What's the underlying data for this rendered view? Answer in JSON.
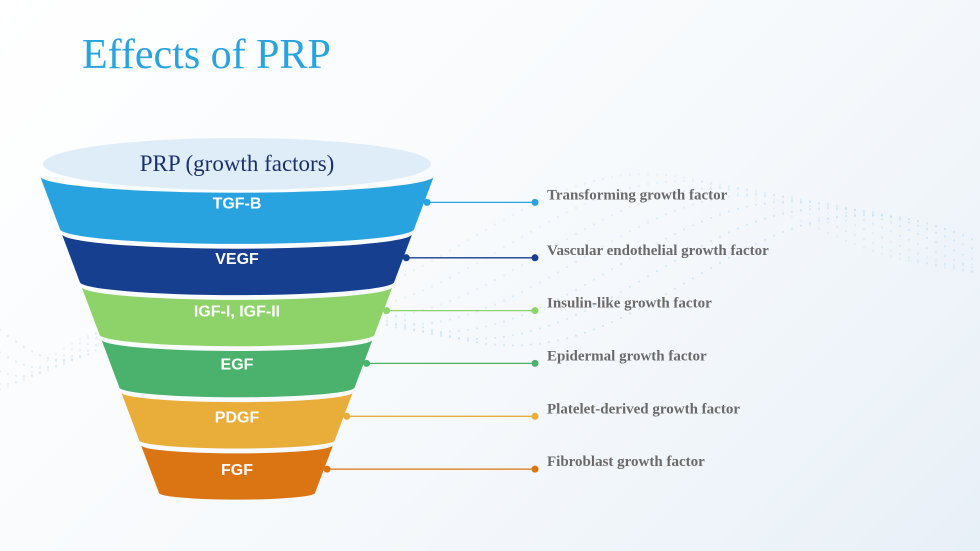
{
  "title": "Effects of PRP",
  "funnel": {
    "top_label": "PRP (growth factors)",
    "layers": [
      {
        "label": "TGF-B",
        "description": "Transforming growth factor",
        "color": "#29a3df"
      },
      {
        "label": "VEGF",
        "description": "Vascular endothelial growth factor",
        "color": "#163f8f"
      },
      {
        "label": "IGF-I, IGF-II",
        "description": "Insulin-like growth factor",
        "color": "#8ed36a"
      },
      {
        "label": "EGF",
        "description": "Epidermal growth factor",
        "color": "#4bb26d"
      },
      {
        "label": "PDGF",
        "description": "Platelet-derived growth factor",
        "color": "#e9ad3a"
      },
      {
        "label": "FGF",
        "description": "Fibroblast growth factor",
        "color": "#db7513"
      }
    ]
  },
  "colors": {
    "title": "#29a3df",
    "top_ellipse": "#deedf8",
    "description_text": "#6a6a6a",
    "wave_dots": "#b9d9ef"
  }
}
